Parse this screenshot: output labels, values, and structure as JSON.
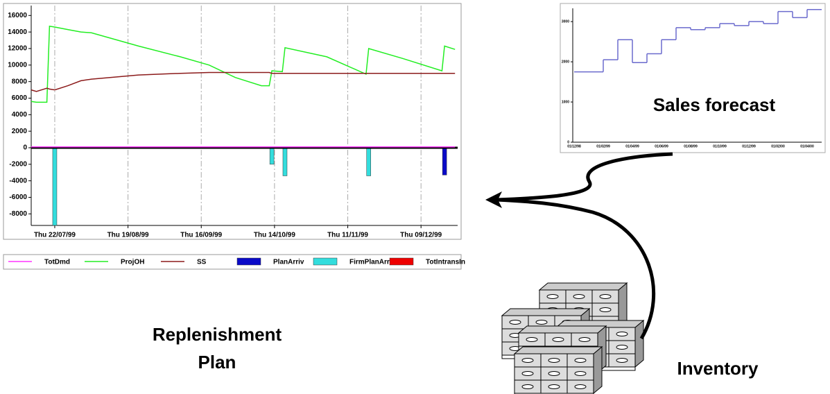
{
  "chart_data": [
    {
      "type": "combo",
      "x": [
        "1999-07-13",
        "1999-07-15",
        "1999-07-19",
        "1999-07-20",
        "1999-07-22",
        "1999-07-27",
        "1999-08-01",
        "1999-08-05",
        "1999-08-23",
        "1999-09-08",
        "1999-09-19",
        "1999-09-29",
        "1999-10-09",
        "1999-10-12",
        "1999-10-13",
        "1999-10-17",
        "1999-10-18",
        "1999-11-03",
        "1999-11-18",
        "1999-11-19",
        "1999-12-02",
        "1999-12-17",
        "1999-12-18",
        "1999-12-22"
      ],
      "xlim": [
        "1999-07-13",
        "1999-12-23"
      ],
      "xticks": [
        {
          "value": "1999-07-22",
          "label": "Thu 22/07/99"
        },
        {
          "value": "1999-08-19",
          "label": "Thu 19/08/99"
        },
        {
          "value": "1999-09-16",
          "label": "Thu 16/09/99"
        },
        {
          "value": "1999-10-14",
          "label": "Thu 14/10/99"
        },
        {
          "value": "1999-11-11",
          "label": "Thu 11/11/99"
        },
        {
          "value": "1999-12-09",
          "label": "Thu 09/12/99"
        }
      ],
      "ylim": [
        -9400,
        17200
      ],
      "yticks": [
        -8000,
        -6000,
        -4000,
        -2000,
        0,
        2000,
        4000,
        6000,
        8000,
        10000,
        12000,
        14000,
        16000
      ],
      "grid": "x",
      "series": [
        {
          "name": "TotDmd",
          "kind": "line",
          "color": "#ff33ff",
          "values": [
            100,
            100,
            100,
            100,
            100,
            100,
            100,
            100,
            100,
            100,
            100,
            100,
            100,
            100,
            100,
            100,
            100,
            100,
            100,
            100,
            100,
            100,
            100,
            100
          ]
        },
        {
          "name": "ProjOH",
          "kind": "line",
          "color": "#22ee22",
          "values": [
            5600,
            5500,
            5500,
            14700,
            14600,
            14300,
            14000,
            13900,
            12300,
            11000,
            10000,
            8500,
            7500,
            7500,
            9300,
            9200,
            12100,
            11000,
            8900,
            12000,
            10800,
            9300,
            12300,
            11900
          ]
        },
        {
          "name": "SS",
          "kind": "line",
          "color": "#8b1a1a",
          "values": [
            7000,
            6800,
            7200,
            7100,
            7000,
            7500,
            8100,
            8300,
            8800,
            9000,
            9100,
            9100,
            9100,
            9100,
            9000,
            9000,
            9000,
            9000,
            9000,
            9000,
            9000,
            9000,
            9000,
            9000
          ]
        },
        {
          "name": "PlanArriv",
          "kind": "bar",
          "color": "#0a0ac8",
          "values": [
            null,
            null,
            null,
            null,
            null,
            null,
            null,
            null,
            null,
            null,
            null,
            null,
            null,
            null,
            null,
            null,
            null,
            null,
            null,
            null,
            null,
            null,
            -3300,
            null
          ]
        },
        {
          "name": "FirmPlanArriv",
          "kind": "bar",
          "color": "#33dddd",
          "values": [
            null,
            null,
            null,
            null,
            -9400,
            null,
            null,
            null,
            null,
            null,
            null,
            null,
            null,
            null,
            -2000,
            null,
            -3400,
            null,
            null,
            -3400,
            null,
            null,
            null,
            null
          ]
        },
        {
          "name": "TotIntransIn",
          "kind": "bar",
          "color": "#ee0000",
          "values": [
            null,
            null,
            null,
            null,
            null,
            null,
            null,
            null,
            null,
            null,
            null,
            null,
            null,
            null,
            null,
            null,
            null,
            null,
            null,
            null,
            null,
            null,
            null,
            null
          ]
        }
      ]
    },
    {
      "type": "step",
      "categories": [
        "01/12/98",
        null,
        "01/02/99",
        null,
        "01/04/99",
        null,
        "01/06/99",
        null,
        "01/08/99",
        null,
        "01/10/99",
        null,
        "01/12/99",
        null,
        "01/02/00",
        null,
        "01/04/00"
      ],
      "values": [
        1750,
        1750,
        2050,
        2550,
        1980,
        2200,
        2550,
        2850,
        2800,
        2850,
        2950,
        2900,
        3000,
        2950,
        3250,
        3100,
        3300
      ],
      "color": "#6a6acd",
      "ylim": [
        0,
        3330
      ],
      "yticks": [
        0,
        1000,
        2000,
        3000
      ]
    }
  ],
  "captions": [
    "Sales forecast",
    "Replenishment Plan",
    "Inventory"
  ]
}
